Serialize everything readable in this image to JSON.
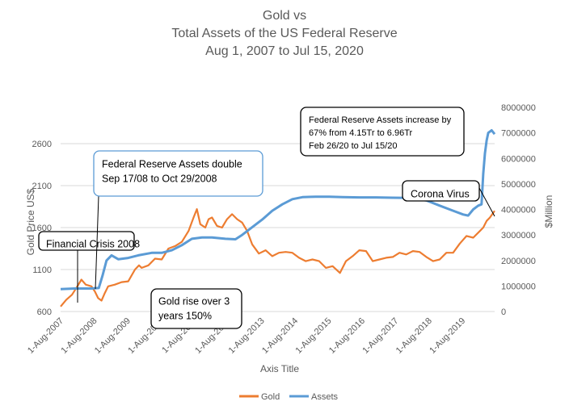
{
  "chart_data": {
    "type": "line",
    "title": [
      "Gold vs",
      "Total Assets of the US Federal Reserve",
      "Aug 1, 2007 to Jul 15, 2020"
    ],
    "xlabel": "Axis Title",
    "ylabel_left": "Gold Price US$",
    "ylabel_right": "$Million",
    "x_ticks": [
      "1-Aug-2007",
      "1-Aug-2008",
      "1-Aug-2009",
      "1-Aug-2010",
      "1-Aug-2011",
      "1-Aug-2012",
      "1-Aug-2013",
      "1-Aug-2014",
      "1-Aug-2015",
      "1-Aug-2016",
      "1-Aug-2017",
      "1-Aug-2018",
      "1-Aug-2019"
    ],
    "xlim": [
      2007.58,
      2020.54
    ],
    "y_left": {
      "min": 600,
      "max": 2600,
      "ticks": [
        600,
        1100,
        1600,
        2100,
        2600
      ]
    },
    "y_right": {
      "min": 0,
      "max": 8000000,
      "ticks": [
        0,
        1000000,
        2000000,
        3000000,
        4000000,
        5000000,
        6000000,
        7000000,
        8000000
      ]
    },
    "grid": "horizontal",
    "legend_position": "bottom",
    "series": [
      {
        "name": "Gold",
        "axis": "left",
        "color": "#ED7D31",
        "x": [
          2007.58,
          2007.75,
          2007.92,
          2008.08,
          2008.2,
          2008.33,
          2008.5,
          2008.6,
          2008.7,
          2008.8,
          2008.9,
          2009.0,
          2009.2,
          2009.4,
          2009.6,
          2009.8,
          2009.92,
          2010.0,
          2010.2,
          2010.4,
          2010.6,
          2010.8,
          2011.0,
          2011.2,
          2011.4,
          2011.55,
          2011.65,
          2011.75,
          2011.9,
          2012.0,
          2012.1,
          2012.25,
          2012.4,
          2012.55,
          2012.7,
          2012.85,
          2013.0,
          2013.15,
          2013.3,
          2013.5,
          2013.7,
          2013.9,
          2014.1,
          2014.3,
          2014.5,
          2014.7,
          2014.9,
          2015.1,
          2015.3,
          2015.5,
          2015.7,
          2015.92,
          2016.1,
          2016.3,
          2016.5,
          2016.7,
          2016.9,
          2017.1,
          2017.3,
          2017.5,
          2017.7,
          2017.9,
          2018.1,
          2018.3,
          2018.5,
          2018.7,
          2018.9,
          2019.1,
          2019.3,
          2019.5,
          2019.7,
          2019.9,
          2020.1,
          2020.2,
          2020.3,
          2020.4,
          2020.54
        ],
        "values": [
          660,
          740,
          800,
          900,
          980,
          920,
          900,
          840,
          760,
          730,
          820,
          900,
          920,
          950,
          960,
          1100,
          1150,
          1120,
          1150,
          1230,
          1220,
          1350,
          1380,
          1430,
          1560,
          1720,
          1820,
          1640,
          1600,
          1700,
          1720,
          1620,
          1600,
          1700,
          1760,
          1700,
          1660,
          1560,
          1400,
          1290,
          1330,
          1260,
          1300,
          1310,
          1300,
          1240,
          1200,
          1220,
          1200,
          1120,
          1140,
          1060,
          1200,
          1260,
          1330,
          1320,
          1200,
          1220,
          1240,
          1250,
          1300,
          1280,
          1320,
          1310,
          1250,
          1200,
          1220,
          1300,
          1300,
          1410,
          1500,
          1480,
          1560,
          1600,
          1680,
          1720,
          1800
        ]
      },
      {
        "name": "Assets",
        "axis": "right",
        "color": "#5B9BD5",
        "x": [
          2007.58,
          2008.0,
          2008.5,
          2008.72,
          2008.83,
          2008.95,
          2009.1,
          2009.3,
          2009.6,
          2009.9,
          2010.3,
          2010.6,
          2010.9,
          2011.2,
          2011.5,
          2011.8,
          2012.1,
          2012.5,
          2012.8,
          2013.0,
          2013.3,
          2013.6,
          2013.9,
          2014.2,
          2014.5,
          2014.8,
          2015.2,
          2015.6,
          2016.0,
          2016.5,
          2017.0,
          2017.5,
          2018.0,
          2018.5,
          2018.9,
          2019.3,
          2019.6,
          2019.75,
          2019.9,
          2020.05,
          2020.15,
          2020.2,
          2020.25,
          2020.3,
          2020.35,
          2020.45,
          2020.54
        ],
        "values": [
          880000,
          900000,
          900000,
          920000,
          1400000,
          2000000,
          2200000,
          2050000,
          2100000,
          2200000,
          2300000,
          2300000,
          2400000,
          2600000,
          2850000,
          2900000,
          2900000,
          2850000,
          2830000,
          3000000,
          3300000,
          3600000,
          3950000,
          4200000,
          4400000,
          4480000,
          4500000,
          4500000,
          4480000,
          4470000,
          4470000,
          4460000,
          4450000,
          4350000,
          4150000,
          3950000,
          3800000,
          3760000,
          4000000,
          4150000,
          4200000,
          5400000,
          6200000,
          6700000,
          7000000,
          7100000,
          6950000
        ]
      }
    ],
    "annotations": [
      {
        "id": "crisis",
        "lines": [
          "Financial Crisis 2008"
        ]
      },
      {
        "id": "double",
        "lines": [
          "Federal Reserve Assets double",
          "Sep 17/08 to Oct 29/2008"
        ]
      },
      {
        "id": "goldrise",
        "lines": [
          "Gold rise over 3",
          "years 150%"
        ]
      },
      {
        "id": "increase",
        "lines": [
          "Federal Reserve Assets increase by",
          "67% from 4.15Tr to 6.96Tr",
          "Feb 26/20 to Jul 15/20"
        ]
      },
      {
        "id": "corona",
        "lines": [
          "Corona Virus"
        ]
      }
    ],
    "legend": [
      {
        "label": "Gold",
        "color": "#ED7D31"
      },
      {
        "label": "Assets",
        "color": "#5B9BD5"
      }
    ]
  }
}
